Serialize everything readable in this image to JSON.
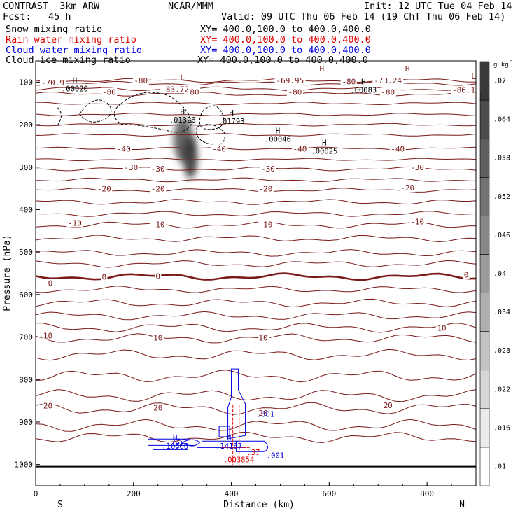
{
  "header": {
    "left_line1": "CONTRAST  3km ARW",
    "left_line2": "Fcst:   45 h",
    "center_line1": "NCAR/MMM",
    "init": "Init: 12 UTC Tue 04 Feb 14",
    "valid": "Valid: 09 UTC Thu 06 Feb 14 (19 ChT Thu 06 Feb 14)",
    "fields": [
      {
        "name": "Snow mixing ratio",
        "xy": "XY= 400.0,100.0 to 400.0,400.0",
        "color": "#000000"
      },
      {
        "name": "Rain water mixing ratio",
        "xy": "XY= 400.0,100.0 to 400.0,400.0",
        "color": "#e00000"
      },
      {
        "name": "Cloud water mixing ratio",
        "xy": "XY= 400.0,100.0 to 400.0,400.0",
        "color": "#0000e0"
      },
      {
        "name": "Cloud ice mixing ratio",
        "xy": "XY= 400.0,100.0 to 400.0,400.0",
        "color": "#000000"
      }
    ]
  },
  "chart_data": {
    "type": "contour",
    "xlabel": "Distance (km)",
    "ylabel": "Pressure (hPa)",
    "xlim": [
      0,
      900
    ],
    "ylim": [
      1050,
      50
    ],
    "xticks": [
      "0",
      "200",
      "400",
      "600",
      "800"
    ],
    "yticks": [
      "100",
      "200",
      "300",
      "400",
      "500",
      "600",
      "700",
      "800",
      "900",
      "1000"
    ],
    "edge_labels": {
      "left": "S",
      "right": "N"
    },
    "contour_color": "#7a1a1a",
    "isotherm_labels": [
      {
        "x": 35,
        "p": 103,
        "label": "-70.9"
      },
      {
        "x": 215,
        "p": 98,
        "label": "-80"
      },
      {
        "x": 150,
        "p": 125,
        "label": "-80"
      },
      {
        "x": 320,
        "p": 125,
        "label": "-80"
      },
      {
        "x": 520,
        "p": 98,
        "label": "-69.95"
      },
      {
        "x": 640,
        "p": 100,
        "label": "-80"
      },
      {
        "x": 720,
        "p": 98,
        "label": "-73.24"
      },
      {
        "x": 530,
        "p": 125,
        "label": "-80"
      },
      {
        "x": 720,
        "p": 125,
        "label": "-80"
      },
      {
        "x": 875,
        "p": 120,
        "label": "-86.1"
      },
      {
        "x": 285,
        "p": 118,
        "label": "-83.72"
      },
      {
        "x": 180,
        "p": 258,
        "label": "-40"
      },
      {
        "x": 375,
        "p": 258,
        "label": "-40"
      },
      {
        "x": 540,
        "p": 258,
        "label": "-40"
      },
      {
        "x": 740,
        "p": 258,
        "label": "-40"
      },
      {
        "x": 195,
        "p": 302,
        "label": "-30"
      },
      {
        "x": 250,
        "p": 305,
        "label": "-30"
      },
      {
        "x": 475,
        "p": 305,
        "label": "-30"
      },
      {
        "x": 780,
        "p": 302,
        "label": "-30"
      },
      {
        "x": 140,
        "p": 352,
        "label": "-20"
      },
      {
        "x": 250,
        "p": 352,
        "label": "-20"
      },
      {
        "x": 470,
        "p": 352,
        "label": "-20"
      },
      {
        "x": 760,
        "p": 350,
        "label": "-20"
      },
      {
        "x": 80,
        "p": 433,
        "label": "-10"
      },
      {
        "x": 250,
        "p": 436,
        "label": "-10"
      },
      {
        "x": 470,
        "p": 436,
        "label": "-10"
      },
      {
        "x": 780,
        "p": 430,
        "label": "-10"
      },
      {
        "x": 30,
        "p": 575,
        "label": "0"
      },
      {
        "x": 140,
        "p": 560,
        "label": "0"
      },
      {
        "x": 250,
        "p": 558,
        "label": "0"
      },
      {
        "x": 880,
        "p": 555,
        "label": "0"
      },
      {
        "x": 25,
        "p": 698,
        "label": "10"
      },
      {
        "x": 250,
        "p": 703,
        "label": "10"
      },
      {
        "x": 465,
        "p": 703,
        "label": "10"
      },
      {
        "x": 830,
        "p": 680,
        "label": "10"
      },
      {
        "x": 25,
        "p": 863,
        "label": "20"
      },
      {
        "x": 250,
        "p": 868,
        "label": "20"
      },
      {
        "x": 465,
        "p": 880,
        "label": "20"
      },
      {
        "x": 720,
        "p": 862,
        "label": "20"
      }
    ],
    "extrema_labels": [
      {
        "x": 80,
        "p": 112,
        "type": "H",
        "value": ".00020",
        "color": "#000000"
      },
      {
        "x": 300,
        "p": 185,
        "type": "H",
        "value": ".01326",
        "color": "#000000"
      },
      {
        "x": 400,
        "p": 188,
        "type": "H",
        "value": ".01793",
        "color": "#000000"
      },
      {
        "x": 495,
        "p": 230,
        "type": "H",
        "value": ".00046",
        "color": "#000000"
      },
      {
        "x": 590,
        "p": 258,
        "type": "H",
        "value": ".00025",
        "color": "#000000"
      },
      {
        "x": 670,
        "p": 115,
        "type": "H",
        "value": ".00083",
        "color": "#000000"
      },
      {
        "x": 285,
        "p": 953,
        "type": "H",
        "value": ".16566",
        "color": "#0000e0"
      },
      {
        "x": 395,
        "p": 953,
        "type": "H",
        "value": ".14167",
        "color": "#0000e0"
      },
      {
        "x": 470,
        "p": 878,
        "type": "",
        "value": ".001",
        "color": "#0000e0"
      },
      {
        "x": 490,
        "p": 975,
        "type": "",
        "value": ".001",
        "color": "#0000e0"
      },
      {
        "x": 415,
        "p": 985,
        "type": "",
        "value": ".003854",
        "color": "#e00000"
      },
      {
        "x": 445,
        "p": 968,
        "type": "",
        "value": ".37",
        "color": "#e00000"
      },
      {
        "x": 300,
        "p": 105,
        "type": "L",
        "value": "",
        "color": "#7a1a1a"
      },
      {
        "x": 895,
        "p": 103,
        "type": "L",
        "value": "",
        "color": "#7a1a1a"
      },
      {
        "x": 760,
        "p": 85,
        "type": "H",
        "value": "",
        "color": "#7a1a1a"
      },
      {
        "x": 585,
        "p": 85,
        "type": "H",
        "value": "",
        "color": "#7a1a1a"
      }
    ],
    "colorbar": {
      "units": "g kg",
      "units_exp": "-1",
      "labels": [
        ".01",
        ".016",
        ".022",
        ".028",
        ".034",
        ".04",
        ".046",
        ".052",
        ".058",
        ".064",
        ".07"
      ]
    }
  }
}
